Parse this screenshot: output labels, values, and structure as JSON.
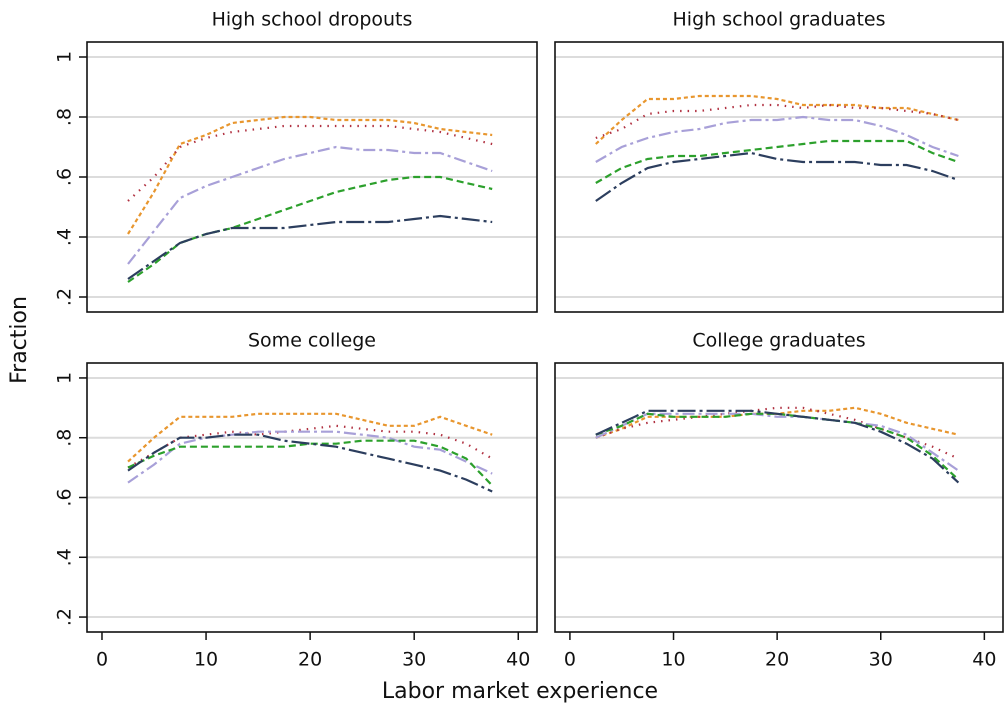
{
  "x_label": "Labor market experience",
  "y_label": "Fraction",
  "chart_data": [
    {
      "type": "line",
      "title": "High school dropouts",
      "x": [
        2.5,
        5,
        7.5,
        10,
        12.5,
        15,
        17.5,
        20,
        22.5,
        25,
        27.5,
        30,
        32.5,
        35,
        37.5
      ],
      "series": [
        {
          "color": "#e8962e",
          "dash": "4 3",
          "values": [
            0.41,
            0.55,
            0.71,
            0.74,
            0.78,
            0.79,
            0.8,
            0.8,
            0.79,
            0.79,
            0.79,
            0.78,
            0.76,
            0.75,
            0.74
          ]
        },
        {
          "color": "#b03040",
          "dash": "1.5 6",
          "values": [
            0.52,
            0.6,
            0.7,
            0.73,
            0.75,
            0.76,
            0.77,
            0.77,
            0.77,
            0.77,
            0.77,
            0.76,
            0.75,
            0.73,
            0.71
          ]
        },
        {
          "color": "#a8a0d8",
          "dash": "12 4 3 4",
          "values": [
            0.31,
            0.42,
            0.53,
            0.57,
            0.6,
            0.63,
            0.66,
            0.68,
            0.7,
            0.69,
            0.69,
            0.68,
            0.68,
            0.65,
            0.62
          ]
        },
        {
          "color": "#2ca02c",
          "dash": "7 4",
          "values": [
            0.25,
            0.31,
            0.38,
            0.41,
            0.43,
            0.46,
            0.49,
            0.52,
            0.55,
            0.57,
            0.59,
            0.6,
            0.6,
            0.58,
            0.56
          ]
        },
        {
          "color": "#2c3e5e",
          "dash": "18 4 3 4",
          "values": [
            0.26,
            0.32,
            0.38,
            0.41,
            0.43,
            0.43,
            0.43,
            0.44,
            0.45,
            0.45,
            0.45,
            0.46,
            0.47,
            0.46,
            0.45
          ]
        }
      ],
      "xlim": [
        -1.44,
        41.8
      ],
      "ylim": [
        0.15,
        1.05
      ],
      "yticks": [
        {
          "value": 0.2,
          "label": ".2"
        },
        {
          "value": 0.4,
          "label": ".4"
        },
        {
          "value": 0.6,
          "label": ".6"
        },
        {
          "value": 0.8,
          "label": ".8"
        },
        1
      ],
      "ytick_labels": true,
      "grid": true
    },
    {
      "type": "line",
      "title": "High school graduates",
      "x": [
        2.5,
        5,
        7.5,
        10,
        12.5,
        15,
        17.5,
        20,
        22.5,
        25,
        27.5,
        30,
        32.5,
        35,
        37.5
      ],
      "series": [
        {
          "color": "#e8962e",
          "dash": "4 3",
          "values": [
            0.71,
            0.79,
            0.86,
            0.86,
            0.87,
            0.87,
            0.87,
            0.86,
            0.84,
            0.84,
            0.84,
            0.83,
            0.83,
            0.81,
            0.79
          ]
        },
        {
          "color": "#b03040",
          "dash": "1.5 6",
          "values": [
            0.73,
            0.76,
            0.81,
            0.82,
            0.82,
            0.83,
            0.84,
            0.84,
            0.83,
            0.84,
            0.83,
            0.83,
            0.82,
            0.81,
            0.79
          ]
        },
        {
          "color": "#a8a0d8",
          "dash": "12 4 3 4",
          "values": [
            0.65,
            0.7,
            0.73,
            0.75,
            0.76,
            0.78,
            0.79,
            0.79,
            0.8,
            0.79,
            0.79,
            0.77,
            0.74,
            0.7,
            0.67
          ]
        },
        {
          "color": "#2ca02c",
          "dash": "7 4",
          "values": [
            0.58,
            0.63,
            0.66,
            0.67,
            0.67,
            0.68,
            0.69,
            0.7,
            0.71,
            0.72,
            0.72,
            0.72,
            0.72,
            0.68,
            0.65
          ]
        },
        {
          "color": "#2c3e5e",
          "dash": "18 4 3 4",
          "values": [
            0.52,
            0.58,
            0.63,
            0.65,
            0.66,
            0.67,
            0.68,
            0.66,
            0.65,
            0.65,
            0.65,
            0.64,
            0.64,
            0.62,
            0.59
          ]
        }
      ],
      "xlim": [
        -1.44,
        41.8
      ],
      "ylim": [
        0.15,
        1.05
      ],
      "yticks": [
        {
          "value": 0.2,
          "label": ".2"
        },
        {
          "value": 0.4,
          "label": ".4"
        },
        {
          "value": 0.6,
          "label": ".6"
        },
        {
          "value": 0.8,
          "label": ".8"
        },
        1
      ],
      "ytick_labels": false,
      "grid": true
    },
    {
      "type": "line",
      "title": "Some college",
      "x": [
        2.5,
        5,
        7.5,
        10,
        12.5,
        15,
        17.5,
        20,
        22.5,
        25,
        27.5,
        30,
        32.5,
        35,
        37.5
      ],
      "series": [
        {
          "color": "#e8962e",
          "dash": "4 3",
          "values": [
            0.72,
            0.8,
            0.87,
            0.87,
            0.87,
            0.88,
            0.88,
            0.88,
            0.88,
            0.86,
            0.84,
            0.84,
            0.87,
            0.84,
            0.81
          ]
        },
        {
          "color": "#b03040",
          "dash": "1.5 6",
          "values": [
            0.7,
            0.75,
            0.8,
            0.81,
            0.82,
            0.81,
            0.82,
            0.83,
            0.84,
            0.83,
            0.82,
            0.82,
            0.81,
            0.78,
            0.73
          ]
        },
        {
          "color": "#a8a0d8",
          "dash": "12 4 3 4",
          "values": [
            0.65,
            0.71,
            0.78,
            0.8,
            0.81,
            0.82,
            0.82,
            0.82,
            0.82,
            0.81,
            0.8,
            0.77,
            0.76,
            0.72,
            0.68
          ]
        },
        {
          "color": "#2ca02c",
          "dash": "7 4",
          "values": [
            0.7,
            0.74,
            0.77,
            0.77,
            0.77,
            0.77,
            0.77,
            0.78,
            0.78,
            0.79,
            0.79,
            0.79,
            0.77,
            0.73,
            0.64
          ]
        },
        {
          "color": "#2c3e5e",
          "dash": "18 4 3 4",
          "values": [
            0.69,
            0.75,
            0.8,
            0.8,
            0.81,
            0.81,
            0.79,
            0.78,
            0.77,
            0.75,
            0.73,
            0.71,
            0.69,
            0.66,
            0.62
          ]
        }
      ],
      "xlim": [
        -1.44,
        41.8
      ],
      "ylim": [
        0.15,
        1.05
      ],
      "yticks": [
        {
          "value": 0.2,
          "label": ".2"
        },
        {
          "value": 0.4,
          "label": ".4"
        },
        {
          "value": 0.6,
          "label": ".6"
        },
        {
          "value": 0.8,
          "label": ".8"
        },
        1
      ],
      "xticks": [
        0,
        10,
        20,
        30,
        40
      ],
      "ytick_labels": true,
      "grid": true
    },
    {
      "type": "line",
      "title": "College graduates",
      "x": [
        2.5,
        5,
        7.5,
        10,
        12.5,
        15,
        17.5,
        20,
        22.5,
        25,
        27.5,
        30,
        32.5,
        35,
        37.5
      ],
      "series": [
        {
          "color": "#e8962e",
          "dash": "4 3",
          "values": [
            0.8,
            0.83,
            0.87,
            0.87,
            0.87,
            0.87,
            0.88,
            0.88,
            0.89,
            0.89,
            0.9,
            0.88,
            0.85,
            0.83,
            0.81
          ]
        },
        {
          "color": "#b03040",
          "dash": "1.5 6",
          "values": [
            0.8,
            0.83,
            0.85,
            0.86,
            0.87,
            0.88,
            0.89,
            0.9,
            0.9,
            0.88,
            0.86,
            0.83,
            0.8,
            0.77,
            0.73
          ]
        },
        {
          "color": "#a8a0d8",
          "dash": "12 4 3 4",
          "values": [
            0.8,
            0.84,
            0.88,
            0.88,
            0.88,
            0.88,
            0.88,
            0.87,
            0.87,
            0.86,
            0.85,
            0.84,
            0.81,
            0.75,
            0.69
          ]
        },
        {
          "color": "#2ca02c",
          "dash": "7 4",
          "values": [
            0.81,
            0.84,
            0.88,
            0.87,
            0.87,
            0.87,
            0.88,
            0.88,
            0.87,
            0.86,
            0.85,
            0.83,
            0.8,
            0.74,
            0.66
          ]
        },
        {
          "color": "#2c3e5e",
          "dash": "18 4 3 4",
          "values": [
            0.81,
            0.85,
            0.89,
            0.89,
            0.89,
            0.89,
            0.89,
            0.88,
            0.87,
            0.86,
            0.85,
            0.82,
            0.78,
            0.73,
            0.65
          ]
        }
      ],
      "xlim": [
        -1.44,
        41.8
      ],
      "ylim": [
        0.15,
        1.05
      ],
      "yticks": [
        {
          "value": 0.2,
          "label": ".2"
        },
        {
          "value": 0.4,
          "label": ".4"
        },
        {
          "value": 0.6,
          "label": ".6"
        },
        {
          "value": 0.8,
          "label": ".8"
        },
        1
      ],
      "xticks": [
        0,
        10,
        20,
        30,
        40
      ],
      "ytick_labels": false,
      "grid": true
    }
  ]
}
